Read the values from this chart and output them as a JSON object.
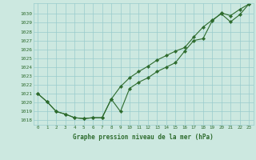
{
  "title": "Graphe pression niveau de la mer (hPa)",
  "background_color": "#cce8e0",
  "grid_color": "#99cccc",
  "line_color": "#2d6b2d",
  "xlim": [
    -0.5,
    23.5
  ],
  "ylim": [
    1017.5,
    1031.2
  ],
  "yticks": [
    1018,
    1019,
    1020,
    1021,
    1022,
    1023,
    1024,
    1025,
    1026,
    1027,
    1028,
    1029,
    1030
  ],
  "xticks": [
    0,
    1,
    2,
    3,
    4,
    5,
    6,
    7,
    8,
    9,
    10,
    11,
    12,
    13,
    14,
    15,
    16,
    17,
    18,
    19,
    20,
    21,
    22,
    23
  ],
  "line1_x": [
    0,
    1,
    2,
    3,
    4,
    5,
    6,
    7,
    8,
    9,
    10,
    11,
    12,
    13,
    14,
    15,
    16,
    17,
    18,
    19,
    20,
    21,
    22,
    23
  ],
  "line1_y": [
    1021.0,
    1020.1,
    1019.0,
    1018.7,
    1018.3,
    1018.2,
    1018.3,
    1018.3,
    1020.4,
    1019.0,
    1021.6,
    1022.3,
    1022.8,
    1023.5,
    1024.0,
    1024.5,
    1025.8,
    1027.0,
    1027.2,
    1029.2,
    1030.1,
    1029.8,
    1030.5,
    1031.1
  ],
  "line2_x": [
    0,
    1,
    2,
    3,
    4,
    5,
    6,
    7,
    8,
    9,
    10,
    11,
    12,
    13,
    14,
    15,
    16,
    17,
    18,
    19,
    20,
    21,
    22,
    23
  ],
  "line2_y": [
    1021.0,
    1020.1,
    1019.0,
    1018.7,
    1018.3,
    1018.2,
    1018.3,
    1018.3,
    1020.4,
    1021.8,
    1022.8,
    1023.5,
    1024.1,
    1024.8,
    1025.3,
    1025.8,
    1026.2,
    1027.4,
    1028.5,
    1029.3,
    1030.0,
    1029.1,
    1029.9,
    1031.1
  ]
}
